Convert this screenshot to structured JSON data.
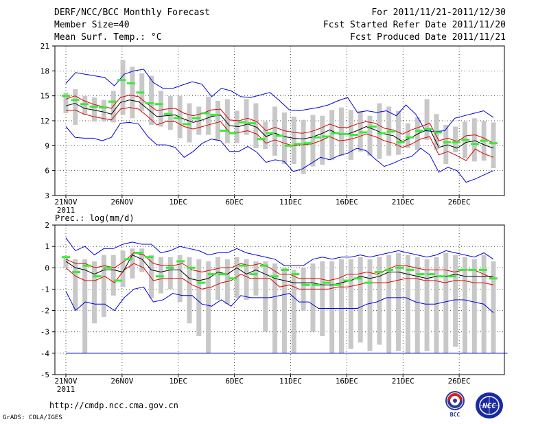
{
  "header": {
    "left_line1": "DERF/NCC/BCC Monthly Forecast",
    "left_line2": "Member Size=40",
    "left_line3": "Mean Surf. Temp.: °C",
    "right_line1": "For 2011/11/21-2011/12/30",
    "right_line2": "Fcst Started Refer Date 2011/11/20",
    "right_line3": "Fcst Produced Date 2011/11/21"
  },
  "footer": {
    "url": "http://cmdp.ncc.cma.gov.cn",
    "credit": "GrADS: COLA/IGES",
    "logo_bcc": "BCC",
    "logo_ncc": "NCC"
  },
  "colors": {
    "envelope": "#0000dd",
    "spread": "#dd0000",
    "mean": "#000000",
    "box": "#c8c8c8",
    "obs": "#33ee33",
    "grid": "#000000"
  },
  "chart_data": [
    {
      "type": "line",
      "title": "Mean Surf. Temp.: °C",
      "x_tick_labels": [
        "21NOV",
        "26NOV",
        "1DEC",
        "6DEC",
        "11DEC",
        "16DEC",
        "21DEC",
        "26DEC"
      ],
      "x_year_label": "2011",
      "ylim": [
        3,
        21
      ],
      "y_ticks": [
        3,
        6,
        9,
        12,
        15,
        18,
        21
      ],
      "grid": "dotted",
      "days": 40,
      "series": [
        {
          "name": "max",
          "values": [
            16.5,
            17.8,
            17.6,
            17.4,
            17.2,
            16.2,
            17.6,
            18.0,
            18.2,
            16.6,
            15.9,
            15.9,
            16.3,
            16.7,
            16.4,
            14.9,
            15.9,
            15.6,
            14.9,
            14.8,
            15.1,
            15.4,
            14.4,
            13.3,
            13.2,
            13.4,
            13.6,
            13.9,
            14.4,
            14.8,
            13.0,
            13.2,
            13.0,
            13.2,
            12.6,
            13.9,
            12.8,
            10.8,
            10.7,
            10.8,
            12.3,
            12.6,
            12.9,
            13.2,
            12.4
          ]
        },
        {
          "name": "upper",
          "values": [
            14.6,
            15.0,
            14.4,
            14.0,
            13.7,
            13.5,
            14.8,
            15.1,
            14.9,
            14.0,
            13.2,
            13.4,
            13.5,
            12.9,
            12.6,
            12.9,
            13.3,
            13.4,
            12.1,
            12.0,
            12.3,
            11.9,
            10.8,
            11.2,
            10.8,
            10.6,
            10.5,
            10.7,
            11.1,
            11.6,
            11.2,
            11.2,
            11.6,
            11.9,
            11.7,
            11.1,
            10.9,
            10.4,
            10.9,
            11.3,
            11.7,
            9.6,
            9.9,
            9.5,
            10.2,
            10.3,
            9.9,
            9.3
          ]
        },
        {
          "name": "mean",
          "values": [
            13.8,
            14.1,
            13.5,
            13.3,
            13.1,
            12.8,
            14.2,
            14.5,
            14.3,
            13.4,
            12.5,
            12.6,
            12.7,
            12.2,
            11.8,
            12.1,
            12.5,
            12.7,
            11.4,
            11.3,
            11.6,
            11.2,
            10.1,
            10.5,
            10.1,
            9.9,
            9.8,
            10.0,
            10.4,
            10.9,
            10.4,
            10.4,
            10.8,
            11.3,
            10.9,
            10.4,
            10.2,
            9.5,
            10.0,
            10.6,
            11.0,
            8.8,
            9.1,
            8.7,
            9.4,
            9.6,
            9.1,
            8.7
          ]
        },
        {
          "name": "lower",
          "values": [
            13.2,
            13.3,
            12.8,
            12.5,
            12.3,
            12.1,
            13.4,
            13.6,
            13.4,
            12.5,
            11.5,
            11.9,
            11.9,
            11.3,
            11.0,
            11.3,
            11.6,
            11.9,
            10.6,
            10.6,
            10.8,
            10.4,
            9.3,
            9.7,
            9.3,
            9.0,
            9.1,
            9.2,
            9.6,
            10.1,
            9.6,
            9.7,
            10.0,
            10.4,
            10.1,
            9.6,
            9.3,
            8.8,
            9.2,
            9.8,
            10.1,
            7.9,
            8.3,
            7.8,
            7.2,
            8.6,
            8.0,
            7.6
          ]
        },
        {
          "name": "min",
          "values": [
            11.3,
            10.0,
            9.9,
            9.9,
            9.6,
            10.0,
            11.7,
            11.8,
            11.6,
            10.1,
            9.1,
            9.1,
            8.8,
            7.6,
            8.3,
            9.3,
            9.8,
            9.6,
            8.3,
            8.3,
            8.9,
            8.2,
            7.0,
            7.3,
            7.1,
            5.9,
            6.2,
            6.9,
            7.6,
            7.3,
            7.8,
            8.1,
            8.7,
            8.4,
            7.4,
            6.5,
            6.9,
            7.4,
            7.7,
            8.7,
            7.9,
            5.8,
            6.4,
            6.0,
            4.6,
            5.0,
            5.5,
            6.0
          ]
        },
        {
          "name": "obs",
          "values": [
            15.0,
            14.5,
            14.0,
            13.7,
            13.6,
            14.3,
            16.9,
            16.5,
            15.4,
            14.1,
            14.0,
            12.8,
            12.3,
            11.6,
            12.3,
            12.9,
            12.7,
            10.8,
            10.5,
            11.8,
            11.7,
            9.8,
            10.5,
            10.2,
            9.0,
            9.2,
            9.3,
            10.0,
            10.1,
            10.5,
            10.4,
            10.3,
            10.6,
            11.3,
            10.5,
            10.7,
            9.4,
            10.0,
            10.8,
            11.0,
            10.6,
            9.4,
            9.4,
            9.7,
            9.2,
            9.6,
            9.3
          ]
        },
        {
          "name": "box_top",
          "values": [
            15.4,
            15.8,
            15.0,
            14.8,
            14.5,
            15.6,
            19.3,
            18.5,
            17.7,
            17.4,
            15.6,
            15.0,
            15.0,
            14.1,
            13.7,
            14.9,
            14.4,
            14.6,
            13.2,
            14.6,
            14.1,
            11.9,
            13.7,
            13.0,
            12.5,
            12.1,
            12.7,
            12.6,
            13.3,
            13.6,
            13.3,
            13.2,
            12.6,
            14.1,
            13.7,
            13.2,
            11.7,
            12.4,
            14.6,
            12.8,
            11.5,
            11.3,
            11.9,
            12.3,
            12.0,
            11.8
          ]
        },
        {
          "name": "box_bottom",
          "values": [
            12.9,
            11.5,
            12.7,
            11.9,
            11.9,
            11.8,
            12.7,
            12.3,
            13.2,
            11.5,
            11.3,
            10.9,
            9.9,
            9.4,
            10.3,
            10.3,
            9.6,
            9.3,
            9.3,
            10.3,
            8.7,
            8.6,
            7.8,
            6.8,
            6.8,
            5.6,
            6.5,
            6.7,
            7.3,
            7.8,
            7.3,
            8.3,
            7.8,
            7.4,
            7.8,
            7.9,
            8.7,
            8.5,
            9.7,
            8.5,
            6.8,
            8.2,
            7.5,
            7.1,
            7.2,
            6.3
          ]
        }
      ]
    },
    {
      "type": "line",
      "title": "Prec.: log(mm/d)",
      "x_tick_labels": [
        "21NOV",
        "26NOV",
        "1DEC",
        "6DEC",
        "11DEC",
        "16DEC",
        "21DEC",
        "26DEC"
      ],
      "x_year_label": "2011",
      "ylim": [
        -5,
        2
      ],
      "y_ticks": [
        -5,
        -4,
        -3,
        -2,
        -1,
        0,
        1,
        2
      ],
      "grid": "dotted",
      "days": 40,
      "series": [
        {
          "name": "max",
          "values": [
            1.4,
            0.8,
            1.0,
            0.6,
            0.9,
            0.9,
            1.1,
            1.2,
            1.1,
            1.1,
            0.7,
            0.8,
            1.0,
            0.9,
            0.8,
            0.6,
            0.7,
            0.7,
            0.9,
            0.7,
            0.6,
            0.5,
            0.4,
            0.1,
            0.1,
            0.1,
            0.4,
            0.5,
            0.4,
            0.5,
            0.5,
            0.6,
            0.5,
            0.6,
            0.7,
            0.8,
            0.7,
            0.6,
            0.5,
            0.6,
            0.8,
            0.7,
            0.6,
            0.5,
            0.7,
            0.4
          ]
        },
        {
          "name": "upper",
          "values": [
            0.4,
            0.2,
            0.2,
            0.0,
            0.1,
            0.0,
            0.3,
            0.7,
            0.6,
            0.2,
            0.1,
            0.1,
            0.2,
            -0.1,
            -0.2,
            -0.1,
            0.0,
            0.0,
            0.2,
            0.1,
            0.2,
            0.0,
            -0.3,
            -0.3,
            -0.5,
            -0.5,
            -0.5,
            -0.6,
            -0.5,
            -0.3,
            -0.3,
            -0.2,
            -0.3,
            -0.1,
            0.1,
            0.1,
            0.0,
            -0.1,
            -0.1,
            -0.1,
            -0.2,
            -0.1,
            -0.1,
            -0.3,
            -0.5
          ]
        },
        {
          "name": "mean",
          "values": [
            0.3,
            0.0,
            -0.1,
            -0.3,
            -0.1,
            -0.1,
            -0.2,
            0.6,
            0.4,
            -0.1,
            -0.2,
            -0.1,
            -0.1,
            -0.5,
            -0.6,
            -0.5,
            -0.2,
            -0.3,
            0.0,
            -0.3,
            -0.1,
            -0.3,
            -0.5,
            -0.6,
            -0.7,
            -0.7,
            -0.7,
            -0.8,
            -0.8,
            -0.7,
            -0.6,
            -0.4,
            -0.5,
            -0.4,
            -0.2,
            -0.2,
            -0.3,
            -0.4,
            -0.5,
            -0.4,
            -0.4,
            -0.3,
            -0.4,
            -0.4,
            -0.4,
            -0.4
          ]
        },
        {
          "name": "lower",
          "values": [
            0.0,
            -0.4,
            -0.6,
            -0.6,
            -0.4,
            -0.7,
            -0.1,
            0.2,
            0.0,
            -0.6,
            -0.5,
            -0.5,
            -0.5,
            -0.8,
            -1.0,
            -0.9,
            -0.7,
            -0.6,
            -0.3,
            -0.5,
            -0.5,
            -0.5,
            -0.9,
            -0.8,
            -1.0,
            -1.0,
            -1.0,
            -1.0,
            -0.9,
            -0.9,
            -0.8,
            -0.7,
            -0.7,
            -0.7,
            -0.6,
            -0.5,
            -0.5,
            -0.6,
            -0.6,
            -0.7,
            -0.6,
            -0.6,
            -0.7,
            -0.7,
            -0.8
          ]
        },
        {
          "name": "min",
          "values": [
            -1.1,
            -2.0,
            -1.6,
            -1.7,
            -1.7,
            -2.0,
            -1.4,
            -1.0,
            -0.9,
            -1.6,
            -1.5,
            -1.2,
            -1.3,
            -1.3,
            -1.7,
            -1.8,
            -1.5,
            -1.8,
            -1.3,
            -1.4,
            -1.4,
            -1.4,
            -1.3,
            -1.2,
            -1.6,
            -1.6,
            -1.9,
            -1.9,
            -1.9,
            -1.9,
            -1.9,
            -1.7,
            -1.6,
            -1.4,
            -1.4,
            -1.4,
            -1.6,
            -1.7,
            -1.7,
            -1.6,
            -1.5,
            -1.5,
            -1.6,
            -1.7,
            -2.1
          ]
        },
        {
          "name": "obs",
          "values": [
            0.5,
            -0.2,
            0.1,
            -0.4,
            0.0,
            -0.6,
            0.4,
            0.7,
            0.5,
            -0.4,
            0.0,
            0.3,
            0.0,
            -0.7,
            -0.3,
            -0.3,
            -0.5,
            0.1,
            -0.3,
            0.1,
            -0.4,
            -0.1,
            -0.3,
            -0.8,
            -0.8,
            -0.7,
            -0.8,
            -0.6,
            -0.5,
            -0.7,
            -0.2,
            -0.1,
            0.0,
            -0.1,
            -0.3,
            -0.3,
            -0.4,
            -0.4,
            -0.1,
            -0.1,
            -0.1,
            -0.5
          ]
        },
        {
          "name": "box_top",
          "values": [
            0.5,
            0.4,
            0.4,
            0.3,
            0.6,
            0.6,
            0.8,
            0.9,
            0.9,
            0.6,
            0.5,
            0.5,
            0.6,
            0.5,
            0.4,
            0.3,
            0.5,
            0.4,
            0.5,
            0.4,
            0.3,
            0.3,
            0.2,
            0.0,
            -0.1,
            0.0,
            0.2,
            0.3,
            0.3,
            0.4,
            0.4,
            0.5,
            0.4,
            0.5,
            0.6,
            0.7,
            0.6,
            0.5,
            0.4,
            0.5,
            0.7,
            0.6,
            0.5,
            0.4,
            0.6,
            0.3
          ]
        },
        {
          "name": "box_bottom",
          "values": [
            0.0,
            -2.0,
            -4.0,
            -2.6,
            -2.3,
            -1.3,
            -0.9,
            -0.5,
            -0.2,
            -1.4,
            -1.2,
            -1.0,
            -1.6,
            -2.6,
            -3.2,
            -4.0,
            -1.5,
            -1.7,
            -1.4,
            -1.5,
            -1.3,
            -3.0,
            -4.0,
            -4.0,
            -4.0,
            -2.0,
            -3.0,
            -3.2,
            -4.0,
            -4.0,
            -3.8,
            -3.5,
            -3.9,
            -3.6,
            -4.0,
            -3.9,
            -4.0,
            -4.0,
            -3.9,
            -4.0,
            -4.0,
            -3.7,
            -4.0,
            -4.0,
            -4.0,
            -4.0
          ]
        },
        {
          "name": "floor_line",
          "values": [
            -4
          ]
        }
      ]
    }
  ]
}
